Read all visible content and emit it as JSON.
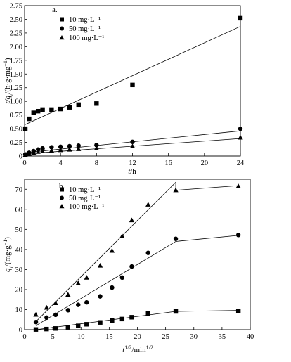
{
  "chart_data": [
    {
      "type": "scatter",
      "panel_label": "a.",
      "xlabel_italic": "t",
      "xlabel_rest": "/h",
      "ylabel_italic": "t/q",
      "ylabel_sub": "t",
      "ylabel_rest": "/(h·g·mg",
      "ylabel_sup": "−1",
      "ylabel_close": ")",
      "xlim": [
        0,
        24
      ],
      "ylim": [
        0,
        2.75
      ],
      "xticks": [
        "0",
        "4",
        "8",
        "12",
        "16",
        "20",
        "24"
      ],
      "yticks": [
        "0",
        "0.25",
        "0.50",
        "0.75",
        "1.00",
        "1.25",
        "1.50",
        "1.75",
        "2.00",
        "2.25",
        "2.50",
        "2.75"
      ],
      "legend_position": "top-left",
      "series": [
        {
          "name": "10 mg·L⁻¹",
          "marker": "square",
          "points": [
            [
              0.08,
              0.5
            ],
            [
              0.5,
              0.68
            ],
            [
              1,
              0.79
            ],
            [
              1.5,
              0.82
            ],
            [
              2,
              0.85
            ],
            [
              3,
              0.85
            ],
            [
              4,
              0.86
            ],
            [
              5,
              0.89
            ],
            [
              6,
              0.94
            ],
            [
              8,
              0.96
            ],
            [
              12,
              1.3
            ],
            [
              24,
              2.52
            ]
          ],
          "fit_line": [
            [
              0,
              0.57
            ],
            [
              24,
              2.37
            ]
          ]
        },
        {
          "name": "50 mg·L⁻¹",
          "marker": "circle",
          "points": [
            [
              0.08,
              0.03
            ],
            [
              0.5,
              0.06
            ],
            [
              1,
              0.09
            ],
            [
              1.5,
              0.12
            ],
            [
              2,
              0.14
            ],
            [
              3,
              0.16
            ],
            [
              4,
              0.17
            ],
            [
              5,
              0.18
            ],
            [
              6,
              0.19
            ],
            [
              8,
              0.2
            ],
            [
              12,
              0.26
            ],
            [
              24,
              0.5
            ]
          ],
          "fit_line": [
            [
              0,
              0.06
            ],
            [
              24,
              0.46
            ]
          ]
        },
        {
          "name": "100 mg·L⁻¹",
          "marker": "triangle",
          "points": [
            [
              0.08,
              0.02
            ],
            [
              0.5,
              0.04
            ],
            [
              1,
              0.06
            ],
            [
              1.5,
              0.08
            ],
            [
              2,
              0.09
            ],
            [
              3,
              0.1
            ],
            [
              4,
              0.11
            ],
            [
              5,
              0.12
            ],
            [
              6,
              0.13
            ],
            [
              8,
              0.14
            ],
            [
              12,
              0.18
            ],
            [
              24,
              0.34
            ]
          ],
          "fit_line": [
            [
              0,
              0.04
            ],
            [
              24,
              0.32
            ]
          ]
        }
      ]
    },
    {
      "type": "scatter",
      "panel_label": "b.",
      "xlabel_italic": "t",
      "xlabel_sup": "1/2",
      "xlabel_rest": "/min",
      "xlabel_sup2": "1/2",
      "ylabel_italic": "q",
      "ylabel_sub": "t",
      "ylabel_rest": "/(mg·g",
      "ylabel_sup": "−1",
      "ylabel_close": ")",
      "xlim": [
        0,
        40
      ],
      "ylim": [
        0,
        75
      ],
      "xticks": [
        "0",
        "5",
        "10",
        "15",
        "20",
        "25",
        "30",
        "35",
        "40"
      ],
      "yticks": [
        "0",
        "10",
        "20",
        "30",
        "40",
        "50",
        "60",
        "70"
      ],
      "legend_position": "top-left",
      "series": [
        {
          "name": "10 mg·L⁻¹",
          "marker": "square",
          "points": [
            [
              2,
              0.1
            ],
            [
              3.9,
              0.3
            ],
            [
              5.5,
              0.6
            ],
            [
              7.7,
              1.3
            ],
            [
              9.5,
              1.9
            ],
            [
              11,
              2.7
            ],
            [
              13.4,
              3.6
            ],
            [
              15.5,
              4.6
            ],
            [
              17.3,
              5.3
            ],
            [
              19,
              6.2
            ],
            [
              21.9,
              8.1
            ],
            [
              26.8,
              9.1
            ],
            [
              37.9,
              9.3
            ]
          ],
          "fit_line": [
            [
              2,
              0
            ],
            [
              26.8,
              9.1
            ],
            [
              37.9,
              9.6
            ]
          ]
        },
        {
          "name": "50 mg·L⁻¹",
          "marker": "circle",
          "points": [
            [
              2,
              3.8
            ],
            [
              3.9,
              6
            ],
            [
              5.5,
              7.4
            ],
            [
              7.7,
              9.7
            ],
            [
              9.5,
              12.4
            ],
            [
              11,
              13.6
            ],
            [
              13.4,
              16.6
            ],
            [
              15.5,
              21
            ],
            [
              17.3,
              26
            ],
            [
              19,
              31.5
            ],
            [
              21.9,
              38.3
            ],
            [
              26.8,
              45.3
            ],
            [
              37.9,
              47.2
            ]
          ],
          "fit_line": [
            [
              2,
              2
            ],
            [
              26.8,
              44
            ],
            [
              37.9,
              47
            ]
          ]
        },
        {
          "name": "100 mg·L⁻¹",
          "marker": "triangle",
          "points": [
            [
              2,
              7.5
            ],
            [
              3.9,
              11
            ],
            [
              5.5,
              13.3
            ],
            [
              7.7,
              17.5
            ],
            [
              9.5,
              23.2
            ],
            [
              11,
              26
            ],
            [
              13.4,
              32
            ],
            [
              15.5,
              39.4
            ],
            [
              17.3,
              46.7
            ],
            [
              19,
              54.6
            ],
            [
              21.9,
              62.4
            ],
            [
              26.8,
              69.6
            ],
            [
              37.9,
              71.5
            ]
          ],
          "fit_line": [
            [
              2,
              4
            ],
            [
              26.8,
              73.5
            ],
            [
              26.8,
              69.5
            ],
            [
              37.9,
              71.8
            ]
          ]
        }
      ]
    }
  ]
}
